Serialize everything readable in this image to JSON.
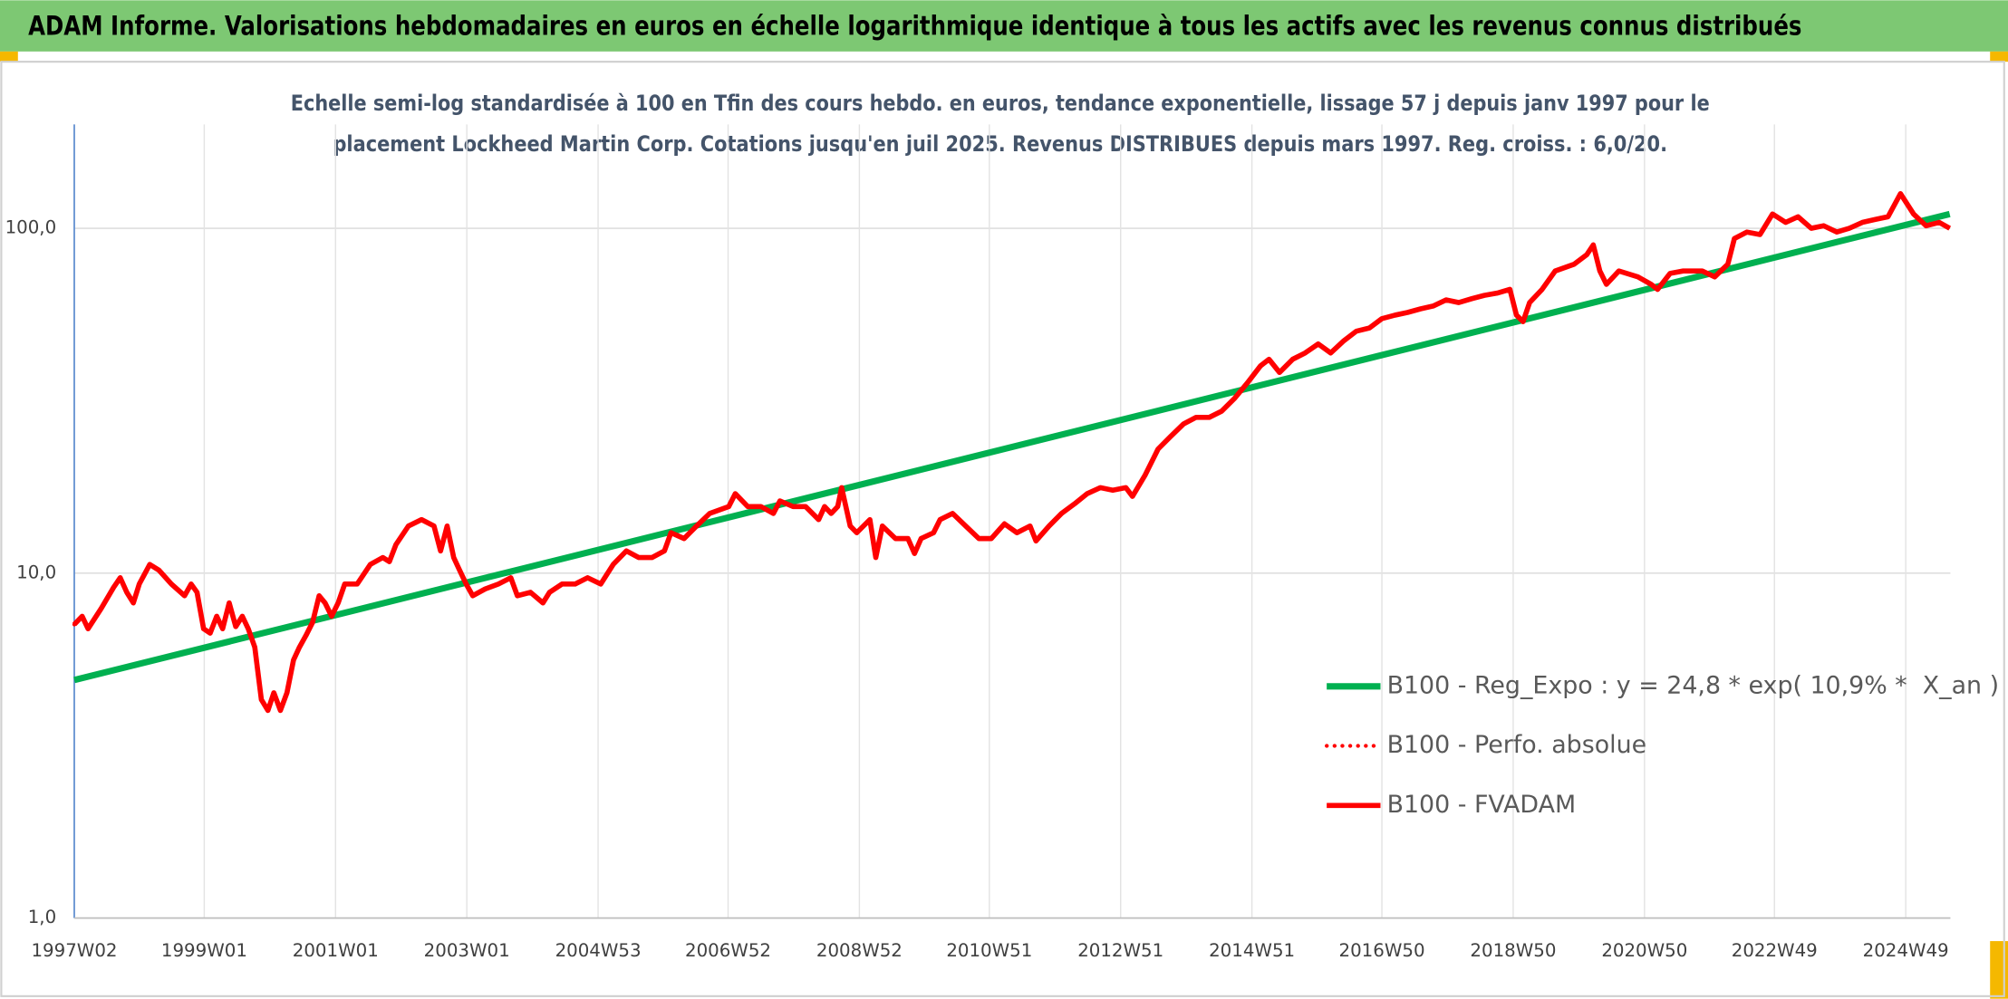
{
  "chart_data": {
    "type": "line",
    "title": "ADAM Informe. Valorisations hebdomadaires en euros en échelle logarithmique identique à tous les actifs avec les revenus connus distribués",
    "subtitle": [
      "Echelle semi-log standardisée à 100 en Tfin des cours hebdo. en euros, tendance exponentielle, lissage 57 j depuis janv 1997 pour le",
      "placement Lockheed Martin Corp. Cotations jusqu'en juil 2025. Revenus DISTRIBUES depuis mars 1997. Reg. croiss. : 6,0/20."
    ],
    "log_y": true,
    "grid": true,
    "xlim": [
      1997.02,
      2025.6
    ],
    "ylim": [
      1,
      200
    ],
    "yticks": [
      {
        "value": 1,
        "label": "1,0"
      },
      {
        "value": 10,
        "label": "10,0"
      },
      {
        "value": 100,
        "label": "100,0"
      }
    ],
    "xticks": [
      {
        "value": 1997.02,
        "label": "1997W02"
      },
      {
        "value": 1999.0,
        "label": "1999W01"
      },
      {
        "value": 2001.0,
        "label": "2001W01"
      },
      {
        "value": 2003.0,
        "label": "2003W01"
      },
      {
        "value": 2005.0,
        "label": "2004W53"
      },
      {
        "value": 2006.98,
        "label": "2006W52"
      },
      {
        "value": 2008.98,
        "label": "2008W52"
      },
      {
        "value": 2010.96,
        "label": "2010W51"
      },
      {
        "value": 2012.96,
        "label": "2012W51"
      },
      {
        "value": 2014.96,
        "label": "2014W51"
      },
      {
        "value": 2016.94,
        "label": "2016W50"
      },
      {
        "value": 2018.94,
        "label": "2018W50"
      },
      {
        "value": 2020.94,
        "label": "2020W50"
      },
      {
        "value": 2022.92,
        "label": "2022W49"
      },
      {
        "value": 2024.92,
        "label": "2024W49"
      }
    ],
    "x": [
      1997.02,
      1997.14,
      1997.23,
      1997.43,
      1997.62,
      1997.72,
      1997.82,
      1997.92,
      1998.01,
      1998.17,
      1998.31,
      1998.5,
      1998.7,
      1998.8,
      1998.89,
      1998.99,
      1999.09,
      1999.19,
      1999.28,
      1999.38,
      1999.48,
      1999.58,
      1999.67,
      1999.77,
      1999.87,
      1999.97,
      2000.06,
      2000.16,
      2000.26,
      2000.36,
      2000.45,
      2000.55,
      2000.65,
      2000.75,
      2000.84,
      2000.94,
      2001.04,
      2001.14,
      2001.33,
      2001.53,
      2001.72,
      2001.82,
      2001.92,
      2002.11,
      2002.31,
      2002.5,
      2002.6,
      2002.7,
      2002.8,
      2002.89,
      2002.99,
      2003.09,
      2003.28,
      2003.48,
      2003.67,
      2003.77,
      2003.97,
      2004.16,
      2004.26,
      2004.45,
      2004.65,
      2004.84,
      2005.04,
      2005.23,
      2005.43,
      2005.62,
      2005.82,
      2006.01,
      2006.11,
      2006.31,
      2006.5,
      2006.7,
      2006.99,
      2007.09,
      2007.28,
      2007.48,
      2007.67,
      2007.77,
      2007.97,
      2008.16,
      2008.36,
      2008.45,
      2008.55,
      2008.65,
      2008.71,
      2008.84,
      2008.94,
      2009.14,
      2009.23,
      2009.33,
      2009.53,
      2009.72,
      2009.82,
      2009.92,
      2010.11,
      2010.21,
      2010.4,
      2010.6,
      2010.8,
      2010.99,
      2011.19,
      2011.38,
      2011.58,
      2011.67,
      2011.87,
      2012.06,
      2012.26,
      2012.45,
      2012.65,
      2012.84,
      2013.04,
      2013.14,
      2013.33,
      2013.53,
      2013.72,
      2013.92,
      2014.11,
      2014.31,
      2014.5,
      2014.7,
      2014.89,
      2015.09,
      2015.22,
      2015.38,
      2015.58,
      2015.77,
      2015.97,
      2016.16,
      2016.36,
      2016.55,
      2016.75,
      2016.94,
      2017.14,
      2017.33,
      2017.53,
      2017.72,
      2017.92,
      2018.11,
      2018.31,
      2018.5,
      2018.7,
      2018.89,
      2018.99,
      2019.09,
      2019.19,
      2019.38,
      2019.58,
      2019.87,
      2020.06,
      2020.16,
      2020.26,
      2020.36,
      2020.55,
      2020.84,
      2021.04,
      2021.14,
      2021.33,
      2021.53,
      2021.82,
      2022.01,
      2022.21,
      2022.31,
      2022.5,
      2022.7,
      2022.89,
      2023.09,
      2023.28,
      2023.48,
      2023.67,
      2023.87,
      2024.06,
      2024.26,
      2024.45,
      2024.65,
      2024.84,
      2025.04,
      2025.23,
      2025.43,
      2025.59
    ],
    "series": [
      {
        "name": "B100 - Reg_Expo : y = 24,8 * exp( 10,9% *  X_an )",
        "color": "#00b050",
        "style": "solid",
        "width": 5,
        "x": [
          1997.02,
          2025.59
        ],
        "values": [
          4.9,
          110
        ]
      },
      {
        "name": "B100 - Perfo. absolue",
        "color": "#ff0000",
        "style": "dotted",
        "width": 3,
        "values": [
          7.1,
          7.5,
          6.9,
          7.9,
          9.1,
          9.7,
          8.8,
          8.2,
          9.3,
          10.6,
          10.2,
          9.3,
          8.6,
          9.3,
          8.8,
          6.9,
          6.7,
          7.5,
          6.9,
          8.2,
          7.0,
          7.5,
          6.9,
          6.1,
          4.3,
          4.0,
          4.5,
          4.0,
          4.5,
          5.6,
          6.1,
          6.6,
          7.2,
          8.6,
          8.2,
          7.5,
          8.2,
          9.3,
          9.3,
          10.6,
          11.1,
          10.8,
          12.1,
          13.7,
          14.3,
          13.7,
          11.6,
          13.7,
          11.1,
          10.2,
          9.3,
          8.6,
          9.0,
          9.3,
          9.7,
          8.6,
          8.8,
          8.2,
          8.8,
          9.3,
          9.3,
          9.7,
          9.3,
          10.6,
          11.6,
          11.1,
          11.1,
          11.6,
          13.1,
          12.6,
          13.7,
          14.9,
          15.6,
          17.0,
          15.6,
          15.6,
          14.9,
          16.2,
          15.6,
          15.6,
          14.3,
          15.6,
          14.9,
          15.6,
          17.7,
          13.7,
          13.1,
          14.3,
          11.1,
          13.7,
          12.6,
          12.6,
          11.4,
          12.6,
          13.1,
          14.3,
          14.9,
          13.7,
          12.6,
          12.6,
          13.9,
          13.1,
          13.7,
          12.4,
          13.7,
          14.9,
          15.9,
          17.0,
          17.7,
          17.4,
          17.7,
          16.7,
          19.2,
          22.9,
          24.9,
          27.1,
          28.3,
          28.3,
          29.5,
          32.2,
          35.6,
          39.9,
          41.7,
          38.2,
          41.7,
          43.5,
          46.2,
          43.5,
          47.2,
          50.3,
          51.4,
          54.7,
          56.0,
          57.0,
          58.4,
          59.5,
          62.0,
          60.9,
          62.5,
          63.9,
          64.9,
          66.5,
          56.0,
          53.6,
          60.9,
          66.5,
          75.2,
          78.7,
          83.8,
          89.5,
          75.2,
          68.8,
          75.2,
          72.3,
          68.8,
          66.5,
          74.0,
          75.2,
          75.2,
          72.3,
          78.7,
          93.4,
          97.5,
          95.9,
          110,
          104,
          108,
          100,
          101.7,
          97.5,
          100,
          104,
          106,
          108,
          126,
          110,
          101.7,
          104,
          100
        ]
      },
      {
        "name": "B100 - FVADAM",
        "color": "#ff0000",
        "style": "solid",
        "width": 4,
        "values": [
          7.1,
          7.5,
          6.9,
          7.9,
          9.1,
          9.7,
          8.8,
          8.2,
          9.3,
          10.6,
          10.2,
          9.3,
          8.6,
          9.3,
          8.8,
          6.9,
          6.7,
          7.5,
          6.9,
          8.2,
          7.0,
          7.5,
          6.9,
          6.1,
          4.3,
          4.0,
          4.5,
          4.0,
          4.5,
          5.6,
          6.1,
          6.6,
          7.2,
          8.6,
          8.2,
          7.5,
          8.2,
          9.3,
          9.3,
          10.6,
          11.1,
          10.8,
          12.1,
          13.7,
          14.3,
          13.7,
          11.6,
          13.7,
          11.1,
          10.2,
          9.3,
          8.6,
          9.0,
          9.3,
          9.7,
          8.6,
          8.8,
          8.2,
          8.8,
          9.3,
          9.3,
          9.7,
          9.3,
          10.6,
          11.6,
          11.1,
          11.1,
          11.6,
          13.1,
          12.6,
          13.7,
          14.9,
          15.6,
          17.0,
          15.6,
          15.6,
          14.9,
          16.2,
          15.6,
          15.6,
          14.3,
          15.6,
          14.9,
          15.6,
          17.7,
          13.7,
          13.1,
          14.3,
          11.1,
          13.7,
          12.6,
          12.6,
          11.4,
          12.6,
          13.1,
          14.3,
          14.9,
          13.7,
          12.6,
          12.6,
          13.9,
          13.1,
          13.7,
          12.4,
          13.7,
          14.9,
          15.9,
          17.0,
          17.7,
          17.4,
          17.7,
          16.7,
          19.2,
          22.9,
          24.9,
          27.1,
          28.3,
          28.3,
          29.5,
          32.2,
          35.6,
          39.9,
          41.7,
          38.2,
          41.7,
          43.5,
          46.2,
          43.5,
          47.2,
          50.3,
          51.4,
          54.7,
          56.0,
          57.0,
          58.4,
          59.5,
          62.0,
          60.9,
          62.5,
          63.9,
          64.9,
          66.5,
          56.0,
          53.6,
          60.9,
          66.5,
          75.2,
          78.7,
          83.8,
          89.5,
          75.2,
          68.8,
          75.2,
          72.3,
          68.8,
          66.5,
          74.0,
          75.2,
          75.2,
          72.3,
          78.7,
          93.4,
          97.5,
          95.9,
          110,
          104,
          108,
          100,
          101.7,
          97.5,
          100,
          104,
          106,
          108,
          126,
          110,
          101.7,
          104,
          100
        ]
      }
    ]
  }
}
